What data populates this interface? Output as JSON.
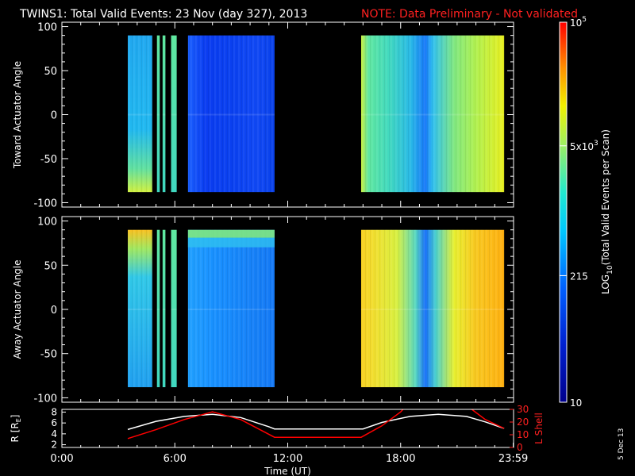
{
  "title": {
    "main": "TWINS1: Total Valid Events: 23 Nov (day 327), 2013",
    "note": "NOTE: Data Preliminary - Not validated"
  },
  "stamp": "5 Dec 13",
  "colors": {
    "background": "#000000",
    "axes": "#ffffff",
    "note": "#ff2020",
    "lshell": "#ff0000",
    "r_line": "#ffffff"
  },
  "chart_data": [
    {
      "type": "heatmap",
      "panel": "toward",
      "ylabel": "Toward Actuator Angle",
      "ylim": [
        -105,
        105
      ],
      "yticks": [
        "100",
        "50",
        "0",
        "-50",
        "-100"
      ],
      "xlim": [
        0,
        24
      ],
      "angle_range": [
        -88,
        90
      ],
      "blocks": [
        {
          "x": [
            3.5,
            4.8
          ],
          "level": "low"
        },
        {
          "x": [
            5.05,
            5.2
          ],
          "level": "mid"
        },
        {
          "x": [
            5.35,
            5.5
          ],
          "level": "mid"
        },
        {
          "x": [
            5.8,
            6.1
          ],
          "level": "mid"
        },
        {
          "x": [
            6.7,
            11.3
          ],
          "level": "low"
        },
        {
          "x": [
            15.9,
            23.5
          ],
          "level": "high"
        }
      ]
    },
    {
      "type": "heatmap",
      "panel": "away",
      "ylabel": "Away Actuator Angle",
      "ylim": [
        -105,
        105
      ],
      "yticks": [
        "100",
        "50",
        "0",
        "-50",
        "-100"
      ],
      "xlim": [
        0,
        24
      ],
      "angle_range": [
        -88,
        90
      ],
      "blocks": [
        {
          "x": [
            3.5,
            4.8
          ],
          "level": "low"
        },
        {
          "x": [
            5.05,
            5.2
          ],
          "level": "mid"
        },
        {
          "x": [
            5.35,
            5.5
          ],
          "level": "mid"
        },
        {
          "x": [
            5.8,
            6.1
          ],
          "level": "mid"
        },
        {
          "x": [
            6.7,
            11.3
          ],
          "level": "low"
        },
        {
          "x": [
            15.9,
            23.5
          ],
          "level": "high"
        }
      ]
    },
    {
      "type": "line",
      "panel": "orbit",
      "xlabel": "Time (UT)",
      "xticks": [
        "0:00",
        "6:00",
        "12:00",
        "18:00",
        "23:59"
      ],
      "xtick_hours": [
        0,
        6,
        12,
        18,
        23.983
      ],
      "y_left": {
        "label": "R [R",
        "label_sub": "E",
        "label_end": "]",
        "ticks": [
          "8",
          "6",
          "4",
          "2"
        ],
        "lim": [
          1.5,
          8.5
        ]
      },
      "y_right": {
        "label": "L Shell",
        "ticks": [
          "30",
          "20",
          "10",
          "0"
        ],
        "lim": [
          0,
          30
        ]
      },
      "series": [
        {
          "axis": "left",
          "color": "#ffffff",
          "x": [
            3.5,
            5,
            6.5,
            8,
            9.5,
            11,
            11.3,
            16,
            17,
            18.5,
            20,
            21.5,
            22.5,
            23.5
          ],
          "y": [
            4.8,
            6.3,
            7.2,
            7.6,
            7.0,
            5.3,
            4.9,
            4.9,
            6.1,
            7.2,
            7.6,
            7.2,
            6.2,
            5.0
          ]
        },
        {
          "axis": "right",
          "color": "#ff0000",
          "x": [
            3.5,
            5,
            6.5,
            8,
            9.5,
            11.3,
            15.9,
            17,
            18,
            18.25
          ],
          "y": [
            7,
            14,
            22,
            28,
            22,
            8,
            8,
            17,
            28,
            32
          ]
        },
        {
          "axis": "right",
          "color": "#ff0000",
          "x": [
            21.6,
            22.5,
            23.5
          ],
          "y": [
            32,
            22,
            15
          ]
        }
      ]
    }
  ],
  "colorbar": {
    "label_prefix": "LOG",
    "label_sub": "10",
    "label_suffix": "(Total Valid Events per Scan)",
    "scale": "log",
    "range": [
      10,
      100000
    ],
    "ticks": [
      {
        "value": 100000,
        "base": "10",
        "exp": "5"
      },
      {
        "value": 5000,
        "base": "5x10",
        "exp": "3"
      },
      {
        "value": 215,
        "text": "215"
      },
      {
        "value": 10,
        "text": "10"
      }
    ]
  }
}
